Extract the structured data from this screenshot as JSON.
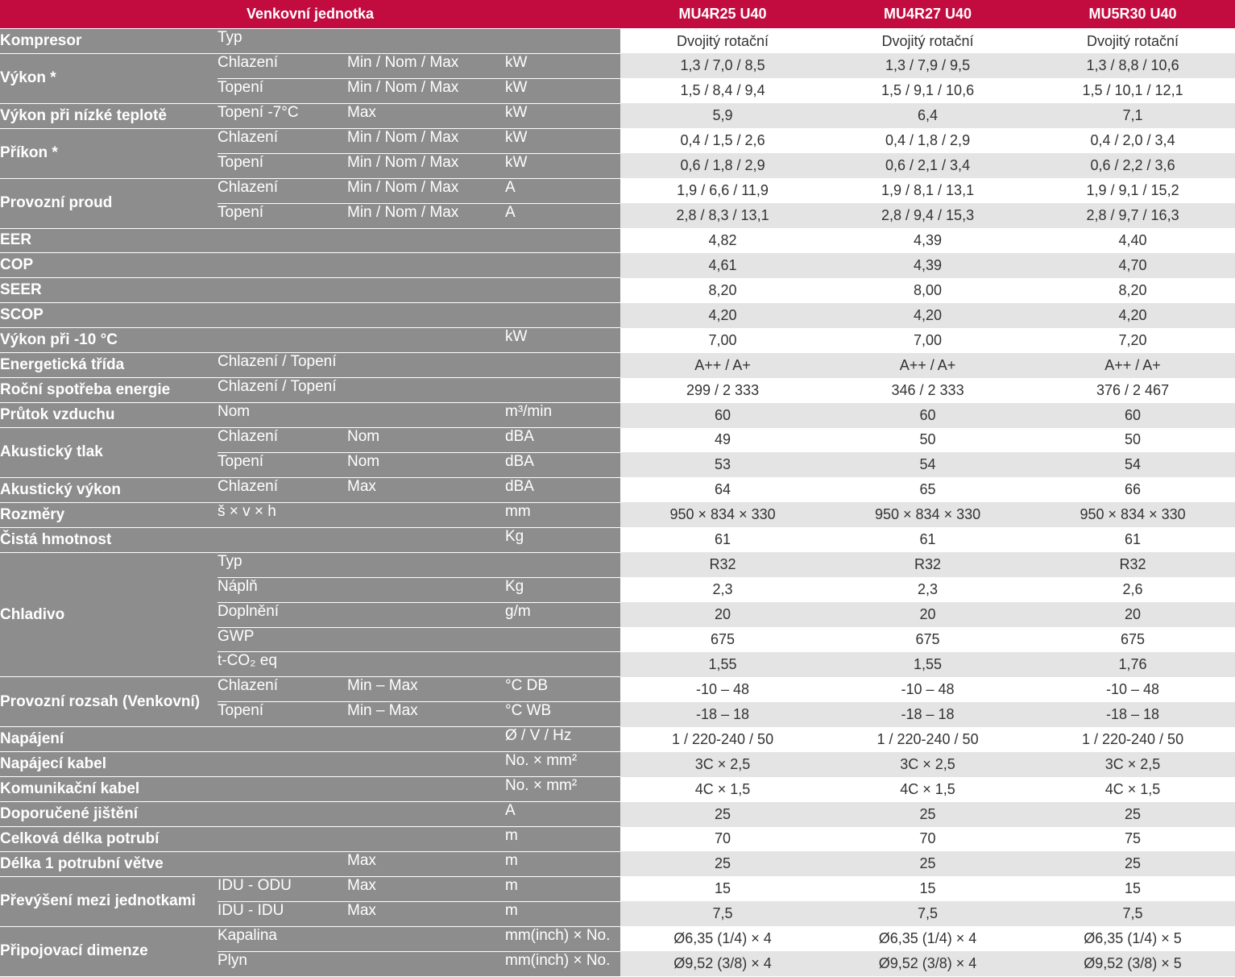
{
  "header": {
    "section": "Venkovní jednotka",
    "models": [
      "MU4R25 U40",
      "MU4R27 U40",
      "MU5R30 U40"
    ]
  },
  "groups": [
    {
      "label": "Kompresor",
      "rows": [
        {
          "a": "Typ",
          "b": "",
          "u": "",
          "v": [
            "Dvojitý rotační",
            "Dvojitý rotační",
            "Dvojitý rotační"
          ]
        }
      ]
    },
    {
      "label": "Výkon *",
      "rows": [
        {
          "a": "Chlazení",
          "b": "Min / Nom / Max",
          "u": "kW",
          "v": [
            "1,3 / 7,0 / 8,5",
            "1,3 / 7,9 / 9,5",
            "1,3 / 8,8 / 10,6"
          ]
        },
        {
          "a": "Topení",
          "b": "Min / Nom / Max",
          "u": "kW",
          "v": [
            "1,5 / 8,4 / 9,4",
            "1,5 / 9,1 / 10,6",
            "1,5 / 10,1 / 12,1"
          ]
        }
      ]
    },
    {
      "label": "Výkon při nízké teplotě",
      "rows": [
        {
          "a": "Topení -7°C",
          "b": "Max",
          "u": "kW",
          "v": [
            "5,9",
            "6,4",
            "7,1"
          ]
        }
      ]
    },
    {
      "label": "Příkon *",
      "rows": [
        {
          "a": "Chlazení",
          "b": "Min / Nom / Max",
          "u": "kW",
          "v": [
            "0,4 / 1,5 / 2,6",
            "0,4 / 1,8 / 2,9",
            "0,4 / 2,0 / 3,4"
          ]
        },
        {
          "a": "Topení",
          "b": "Min / Nom / Max",
          "u": "kW",
          "v": [
            "0,6 / 1,8 / 2,9",
            "0,6 / 2,1 / 3,4",
            "0,6 / 2,2 / 3,6"
          ]
        }
      ]
    },
    {
      "label": "Provozní proud",
      "rows": [
        {
          "a": "Chlazení",
          "b": "Min / Nom / Max",
          "u": "A",
          "v": [
            "1,9 / 6,6 / 11,9",
            "1,9 / 8,1 / 13,1",
            "1,9 / 9,1 / 15,2"
          ]
        },
        {
          "a": "Topení",
          "b": "Min / Nom / Max",
          "u": "A",
          "v": [
            "2,8 / 8,3 / 13,1",
            "2,8 / 9,4 / 15,3",
            "2,8 / 9,7 / 16,3"
          ]
        }
      ]
    },
    {
      "label": "EER",
      "rows": [
        {
          "a": "",
          "b": "",
          "u": "",
          "v": [
            "4,82",
            "4,39",
            "4,40"
          ]
        }
      ]
    },
    {
      "label": "COP",
      "rows": [
        {
          "a": "",
          "b": "",
          "u": "",
          "v": [
            "4,61",
            "4,39",
            "4,70"
          ]
        }
      ]
    },
    {
      "label": "SEER",
      "rows": [
        {
          "a": "",
          "b": "",
          "u": "",
          "v": [
            "8,20",
            "8,00",
            "8,20"
          ]
        }
      ]
    },
    {
      "label": "SCOP",
      "rows": [
        {
          "a": "",
          "b": "",
          "u": "",
          "v": [
            "4,20",
            "4,20",
            "4,20"
          ]
        }
      ]
    },
    {
      "label": "Výkon při -10 °C",
      "rows": [
        {
          "a": "",
          "b": "",
          "u": "kW",
          "v": [
            "7,00",
            "7,00",
            "7,20"
          ]
        }
      ]
    },
    {
      "label": "Energetická třída",
      "rows": [
        {
          "a": "Chlazení / Topení",
          "b": "",
          "u": "",
          "v": [
            "A++ / A+",
            "A++ / A+",
            "A++ / A+"
          ]
        }
      ]
    },
    {
      "label": "Roční spotřeba energie",
      "rows": [
        {
          "a": "Chlazení / Topení",
          "b": "",
          "u": "",
          "v": [
            "299 / 2 333",
            "346 / 2 333",
            "376 / 2 467"
          ]
        }
      ]
    },
    {
      "label": "Průtok vzduchu",
      "rows": [
        {
          "a": "Nom",
          "b": "",
          "u": "m³/min",
          "v": [
            "60",
            "60",
            "60"
          ]
        }
      ]
    },
    {
      "label": "Akustický tlak",
      "rows": [
        {
          "a": "Chlazení",
          "b": "Nom",
          "u": "dBA",
          "v": [
            "49",
            "50",
            "50"
          ]
        },
        {
          "a": "Topení",
          "b": "Nom",
          "u": "dBA",
          "v": [
            "53",
            "54",
            "54"
          ]
        }
      ]
    },
    {
      "label": "Akustický výkon",
      "rows": [
        {
          "a": "Chlazení",
          "b": "Max",
          "u": "dBA",
          "v": [
            "64",
            "65",
            "66"
          ]
        }
      ]
    },
    {
      "label": "Rozměry",
      "rows": [
        {
          "a": "š × v × h",
          "b": "",
          "u": "mm",
          "v": [
            "950 × 834 × 330",
            "950 × 834 × 330",
            "950 × 834 × 330"
          ]
        }
      ]
    },
    {
      "label": "Čistá hmotnost",
      "rows": [
        {
          "a": "",
          "b": "",
          "u": "Kg",
          "v": [
            "61",
            "61",
            "61"
          ]
        }
      ]
    },
    {
      "label": "Chladivo",
      "rows": [
        {
          "a": "Typ",
          "b": "",
          "u": "",
          "v": [
            "R32",
            "R32",
            "R32"
          ]
        },
        {
          "a": "Náplň",
          "b": "",
          "u": "Kg",
          "v": [
            "2,3",
            "2,3",
            "2,6"
          ]
        },
        {
          "a": "Doplnění",
          "b": "",
          "u": "g/m",
          "v": [
            "20",
            "20",
            "20"
          ]
        },
        {
          "a": "GWP",
          "b": "",
          "u": "",
          "v": [
            "675",
            "675",
            "675"
          ]
        },
        {
          "a": "t-CO₂ eq",
          "b": "",
          "u": "",
          "v": [
            "1,55",
            "1,55",
            "1,76"
          ]
        }
      ]
    },
    {
      "label": "Provozní rozsah (Venkovní)",
      "rows": [
        {
          "a": "Chlazení",
          "b": "Min – Max",
          "u": "°C DB",
          "v": [
            "-10 – 48",
            "-10 – 48",
            "-10 – 48"
          ]
        },
        {
          "a": "Topení",
          "b": "Min – Max",
          "u": "°C WB",
          "v": [
            "-18 – 18",
            "-18 – 18",
            "-18 – 18"
          ]
        }
      ]
    },
    {
      "label": "Napájení",
      "rows": [
        {
          "a": "",
          "b": "",
          "u": "Ø / V / Hz",
          "v": [
            "1 / 220-240 / 50",
            "1 / 220-240 / 50",
            "1 / 220-240 / 50"
          ]
        }
      ]
    },
    {
      "label": "Napájecí kabel",
      "rows": [
        {
          "a": "",
          "b": "",
          "u": "No. × mm²",
          "v": [
            "3C × 2,5",
            "3C × 2,5",
            "3C × 2,5"
          ]
        }
      ]
    },
    {
      "label": "Komunikační kabel",
      "rows": [
        {
          "a": "",
          "b": "",
          "u": "No. × mm²",
          "v": [
            "4C × 1,5",
            "4C × 1,5",
            "4C × 1,5"
          ]
        }
      ]
    },
    {
      "label": "Doporučené jištění",
      "rows": [
        {
          "a": "",
          "b": "",
          "u": "A",
          "v": [
            "25",
            "25",
            "25"
          ]
        }
      ]
    },
    {
      "label": "Celková délka potrubí",
      "rows": [
        {
          "a": "",
          "b": "",
          "u": "m",
          "v": [
            "70",
            "70",
            "75"
          ]
        }
      ]
    },
    {
      "label": "Délka 1 potrubní větve",
      "rows": [
        {
          "a": "",
          "b": "Max",
          "u": "m",
          "v": [
            "25",
            "25",
            "25"
          ]
        }
      ]
    },
    {
      "label": "Převýšení mezi jednotkami",
      "rows": [
        {
          "a": "IDU - ODU",
          "b": "Max",
          "u": "m",
          "v": [
            "15",
            "15",
            "15"
          ]
        },
        {
          "a": "IDU - IDU",
          "b": "Max",
          "u": "m",
          "v": [
            "7,5",
            "7,5",
            "7,5"
          ]
        }
      ]
    },
    {
      "label": "Připojovací dimenze",
      "rows": [
        {
          "a": "Kapalina",
          "b": "",
          "u": "mm(inch) × No.",
          "v": [
            "Ø6,35 (1/4) × 4",
            "Ø6,35 (1/4) × 4",
            "Ø6,35 (1/4) × 5"
          ]
        },
        {
          "a": "Plyn",
          "b": "",
          "u": "mm(inch) × No.",
          "v": [
            "Ø9,52 (3/8) × 4",
            "Ø9,52 (3/8) × 4",
            "Ø9,52 (3/8) × 5"
          ]
        }
      ]
    }
  ]
}
